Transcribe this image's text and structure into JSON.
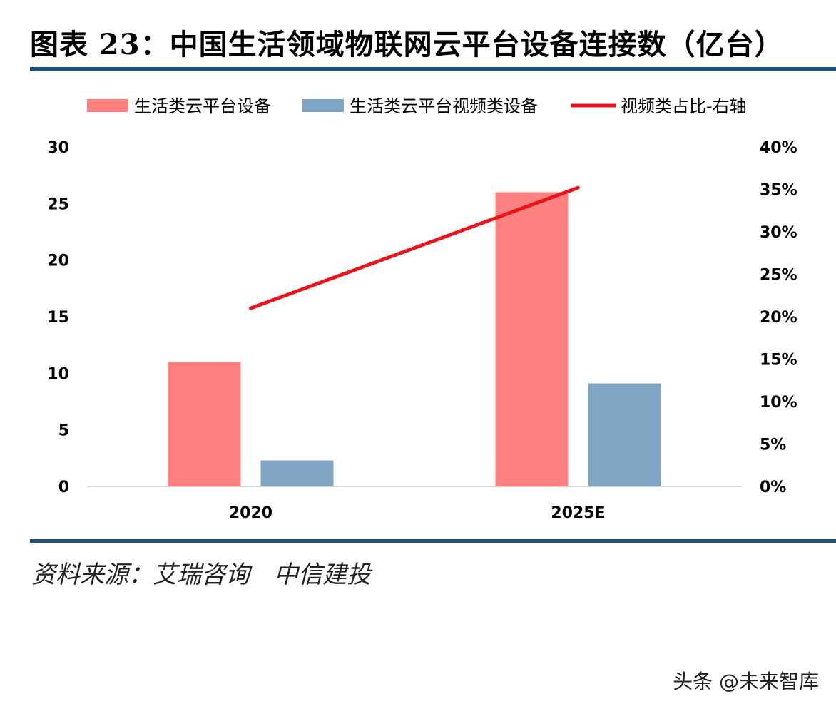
{
  "figure": {
    "title": "图表 23：中国生活领域物联网云平台设备连接数（亿台）",
    "source": "资料来源：艾瑞咨询　中信建投",
    "watermark": "头条 @未来智库"
  },
  "chart_data": {
    "type": "bar",
    "categories": [
      "2020",
      "2025E"
    ],
    "series": [
      {
        "name": "生活类云平台设备",
        "kind": "bar",
        "axis": "left",
        "color": "#ff8080",
        "values": [
          11,
          26
        ]
      },
      {
        "name": "生活类云平台视频类设备",
        "kind": "bar",
        "axis": "left",
        "color": "#7fa4c4",
        "values": [
          2.3,
          9.1
        ]
      },
      {
        "name": "视频类占比-右轴",
        "kind": "line",
        "axis": "right",
        "color": "#e8161b",
        "values": [
          21,
          35.2
        ]
      }
    ],
    "y_left": {
      "min": 0,
      "max": 30,
      "ticks": [
        "0",
        "5",
        "10",
        "15",
        "20",
        "25",
        "30"
      ]
    },
    "y_right": {
      "min": 0,
      "max": 40,
      "ticks": [
        "0%",
        "5%",
        "10%",
        "15%",
        "20%",
        "25%",
        "30%",
        "35%",
        "40%"
      ]
    },
    "grid": false,
    "legend_position": "top"
  }
}
